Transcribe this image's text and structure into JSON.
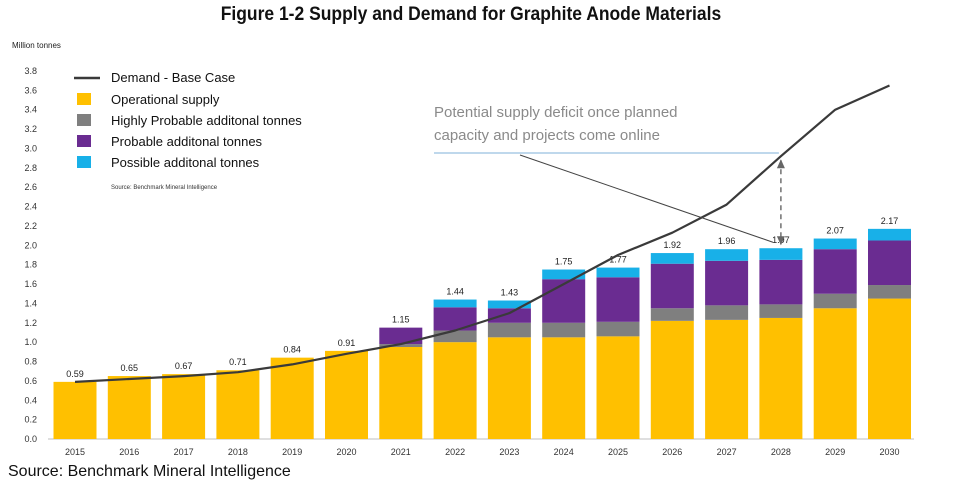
{
  "title": "Figure 1-2 Supply and Demand for Graphite Anode Materials",
  "footer": "Source: Benchmark Mineral Intelligence",
  "colors": {
    "operational": "#FFC000",
    "highly_probable": "#7F7F7F",
    "probable": "#6A2C91",
    "possible": "#18B0E8",
    "demand": "#3A3A3A",
    "annotation": "#8a8a8a"
  },
  "chart_data": {
    "type": "bar",
    "stacked": true,
    "ylabel": "Million tonnes",
    "xlabel": "",
    "ylim": [
      0,
      3.8
    ],
    "y_ticks": [
      "0.0",
      "0.2",
      "0.4",
      "0.6",
      "0.8",
      "1.0",
      "1.2",
      "1.4",
      "1.6",
      "1.8",
      "2.0",
      "2.2",
      "2.4",
      "2.6",
      "2.8",
      "3.0",
      "3.2",
      "3.4",
      "3.6",
      "3.8"
    ],
    "grid": false,
    "categories": [
      "2015",
      "2016",
      "2017",
      "2018",
      "2019",
      "2020",
      "2021",
      "2022",
      "2023",
      "2024",
      "2025",
      "2026",
      "2027",
      "2028",
      "2029",
      "2030"
    ],
    "series": [
      {
        "name": "Operational supply",
        "color_key": "operational",
        "values": [
          0.59,
          0.65,
          0.67,
          0.71,
          0.84,
          0.91,
          0.95,
          1.0,
          1.05,
          1.05,
          1.06,
          1.22,
          1.23,
          1.25,
          1.35,
          1.45
        ]
      },
      {
        "name": "Highly Probable additonal tonnes",
        "color_key": "highly_probable",
        "values": [
          0,
          0,
          0,
          0,
          0,
          0,
          0.03,
          0.12,
          0.15,
          0.15,
          0.15,
          0.13,
          0.15,
          0.14,
          0.15,
          0.14
        ]
      },
      {
        "name": "Probable additonal tonnes",
        "color_key": "probable",
        "values": [
          0,
          0,
          0,
          0,
          0,
          0,
          0.17,
          0.24,
          0.15,
          0.45,
          0.46,
          0.46,
          0.46,
          0.46,
          0.46,
          0.46
        ]
      },
      {
        "name": "Possible additonal tonnes",
        "color_key": "possible",
        "values": [
          0,
          0,
          0,
          0,
          0,
          0,
          0,
          0.08,
          0.08,
          0.1,
          0.1,
          0.11,
          0.12,
          0.12,
          0.11,
          0.12
        ]
      }
    ],
    "total_labels": [
      "0.59",
      "0.65",
      "0.67",
      "0.71",
      "0.84",
      "0.91",
      "1.15",
      "1.44",
      "1.43",
      "1.75",
      "1.77",
      "1.92",
      "1.96",
      "1.97",
      "2.07",
      "2.17"
    ],
    "demand": {
      "name": "Demand - Base Case",
      "values": [
        0.59,
        0.62,
        0.65,
        0.69,
        0.77,
        0.88,
        0.98,
        1.12,
        1.3,
        1.6,
        1.9,
        2.13,
        2.42,
        2.92,
        3.4,
        3.65
      ]
    },
    "legend_placement": "top-left",
    "legend_source": "Source: Benchmark Mineral Intelligence",
    "annotation": {
      "lines": [
        "Potential supply deficit once planned",
        "capacity and projects come online"
      ],
      "year": "2028"
    }
  }
}
